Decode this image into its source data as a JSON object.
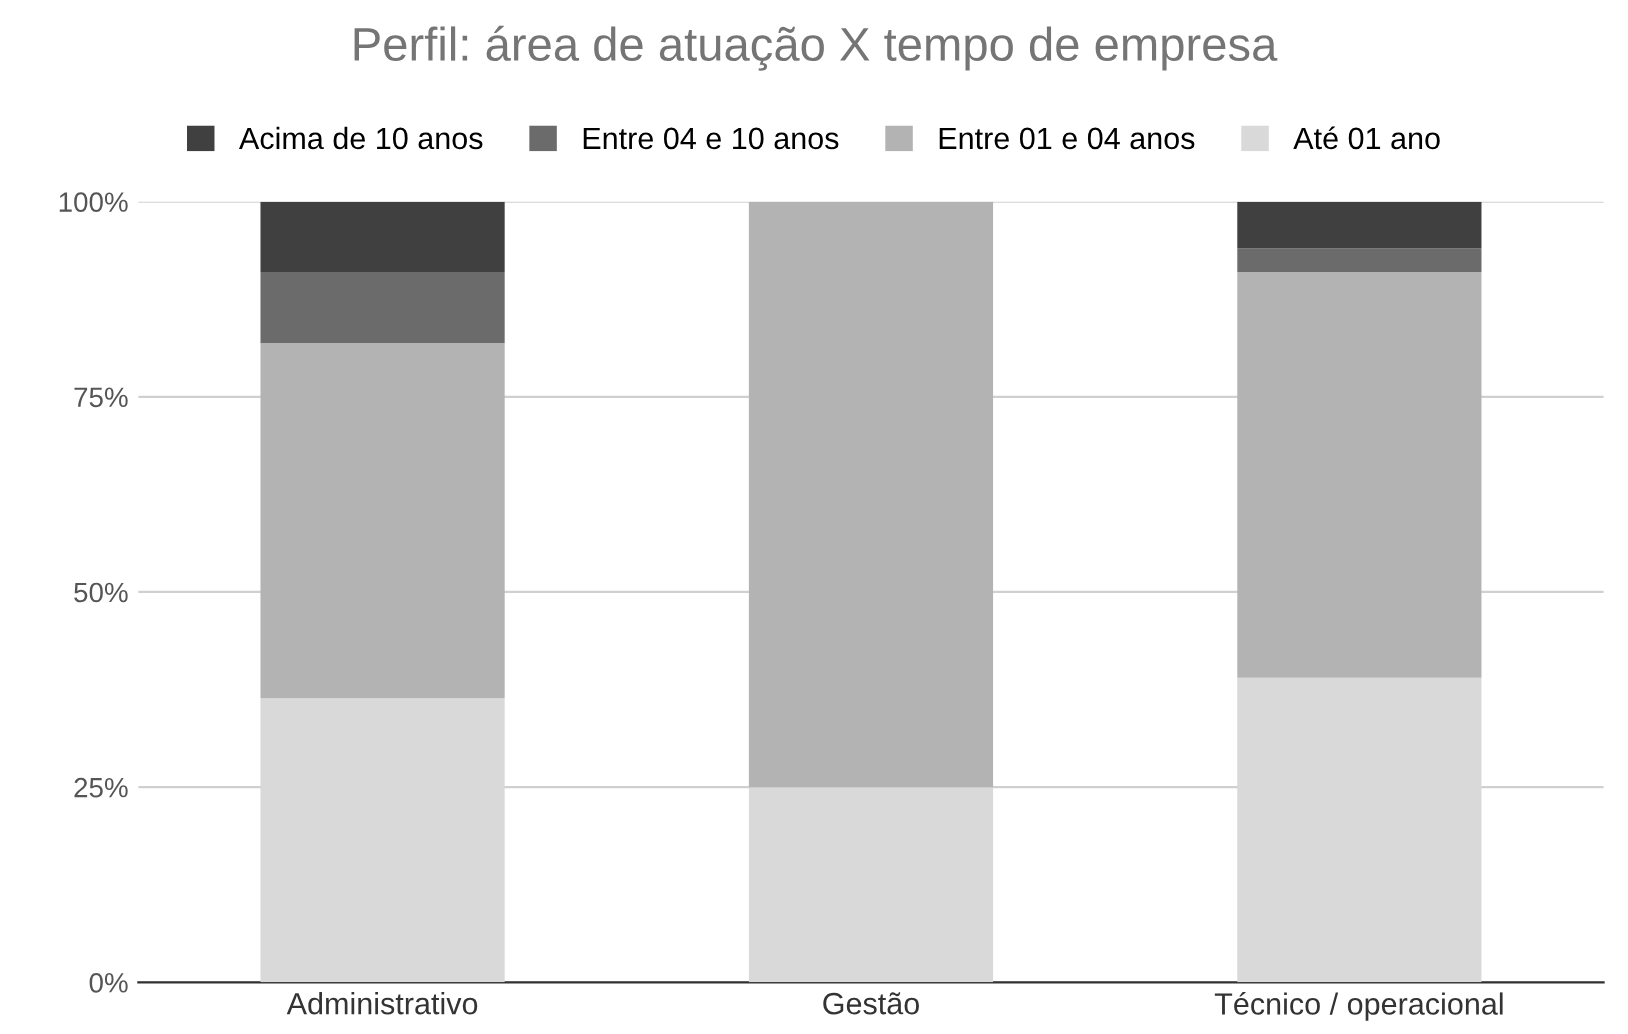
{
  "chart_data": {
    "type": "bar",
    "title": "Perfil: área de atuação X tempo de empresa",
    "categories": [
      "Administrativo",
      "Gestão",
      "Técnico / operacional"
    ],
    "stacked": true,
    "series": [
      {
        "name": "Até 01 ano",
        "color": "#d9d9d9",
        "values": [
          36.4,
          25,
          39
        ]
      },
      {
        "name": "Entre 01 e 04 anos",
        "color": "#b3b3b3",
        "values": [
          45.5,
          75,
          52
        ]
      },
      {
        "name": "Entre 04 e 10 anos",
        "color": "#6b6b6b",
        "values": [
          9.1,
          0,
          3
        ]
      },
      {
        "name": "Acima de 10 anos",
        "color": "#404040",
        "values": [
          9.0,
          0,
          6
        ]
      }
    ],
    "ylim": [
      0,
      100
    ],
    "yticks": [
      {
        "value": 0,
        "label": "0%"
      },
      {
        "value": 25,
        "label": "25%"
      },
      {
        "value": 50,
        "label": "50%"
      },
      {
        "value": 75,
        "label": "75%"
      },
      {
        "value": 100,
        "label": "100%"
      }
    ],
    "grid": "y",
    "legend": "top"
  }
}
